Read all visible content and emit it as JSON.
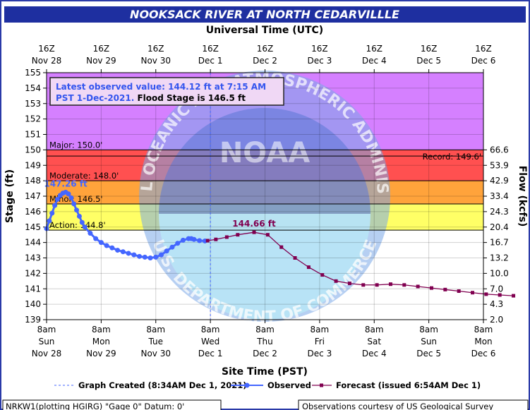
{
  "chart_data": {
    "type": "line",
    "title": "NOOKSACK RIVER AT NORTH CEDARVILLLE",
    "top_axis_title": "Universal Time (UTC)",
    "xlabel": "Site Time (PST)",
    "ylabel": "Stage (ft)",
    "y2label": "Flow (kcfs)",
    "ylim": [
      139,
      155
    ],
    "yticks": [
      139,
      140,
      141,
      142,
      143,
      144,
      145,
      146,
      147,
      148,
      149,
      150,
      151,
      152,
      153,
      154,
      155
    ],
    "top_ticks": [
      {
        "hour": "16Z",
        "date": "Nov 28"
      },
      {
        "hour": "16Z",
        "date": "Nov 29"
      },
      {
        "hour": "16Z",
        "date": "Nov 30"
      },
      {
        "hour": "16Z",
        "date": "Dec 1"
      },
      {
        "hour": "16Z",
        "date": "Dec 2"
      },
      {
        "hour": "16Z",
        "date": "Dec 3"
      },
      {
        "hour": "16Z",
        "date": "Dec 4"
      },
      {
        "hour": "16Z",
        "date": "Dec 5"
      },
      {
        "hour": "16Z",
        "date": "Dec 6"
      }
    ],
    "bottom_ticks": [
      {
        "time": "8am",
        "day": "Sun",
        "date": "Nov 28"
      },
      {
        "time": "8am",
        "day": "Mon",
        "date": "Nov 29"
      },
      {
        "time": "8am",
        "day": "Tue",
        "date": "Nov 30"
      },
      {
        "time": "8am",
        "day": "Wed",
        "date": "Dec 1"
      },
      {
        "time": "8am",
        "day": "Thu",
        "date": "Dec 2"
      },
      {
        "time": "8am",
        "day": "Fri",
        "date": "Dec 3"
      },
      {
        "time": "8am",
        "day": "Sat",
        "date": "Dec 4"
      },
      {
        "time": "8am",
        "day": "Sun",
        "date": "Dec 5"
      },
      {
        "time": "8am",
        "day": "Mon",
        "date": "Dec 6"
      }
    ],
    "flow_ticks": [
      {
        "stage": 150,
        "label": "66.6"
      },
      {
        "stage": 149,
        "label": "53.9"
      },
      {
        "stage": 148,
        "label": "42.9"
      },
      {
        "stage": 147,
        "label": "33.4"
      },
      {
        "stage": 146,
        "label": "24.3"
      },
      {
        "stage": 145,
        "label": "20.4"
      },
      {
        "stage": 144,
        "label": "16.7"
      },
      {
        "stage": 143,
        "label": "13.2"
      },
      {
        "stage": 142,
        "label": "10.0"
      },
      {
        "stage": 141,
        "label": "7.0"
      },
      {
        "stage": 140,
        "label": "4.3"
      },
      {
        "stage": 139,
        "label": "2.0"
      }
    ],
    "flood_categories": [
      {
        "label": "Major: 150.0'",
        "stage": 150.0,
        "top": 155,
        "color": "#d580ff"
      },
      {
        "label": "Moderate: 148.0'",
        "stage": 148.0,
        "top": 150.0,
        "color": "#ff5050"
      },
      {
        "label": "Minor: 146.5'",
        "stage": 146.5,
        "top": 148.0,
        "color": "#ffa33b"
      },
      {
        "label": "Action: 144.8'",
        "stage": 144.8,
        "top": 146.5,
        "color": "#ffff66"
      }
    ],
    "record": {
      "label": "Record: 149.6'",
      "stage": 149.6
    },
    "graph_created_day": 3.0,
    "series": [
      {
        "name": "Observed",
        "color": "#4466ff",
        "points": [
          [
            0.0,
            144.9
          ],
          [
            0.05,
            145.4
          ],
          [
            0.1,
            145.9
          ],
          [
            0.15,
            146.4
          ],
          [
            0.2,
            146.8
          ],
          [
            0.25,
            147.05
          ],
          [
            0.3,
            147.2
          ],
          [
            0.35,
            147.26
          ],
          [
            0.4,
            147.15
          ],
          [
            0.45,
            146.9
          ],
          [
            0.5,
            146.5
          ],
          [
            0.55,
            146.1
          ],
          [
            0.6,
            145.7
          ],
          [
            0.65,
            145.3
          ],
          [
            0.7,
            145.0
          ],
          [
            0.8,
            144.6
          ],
          [
            0.9,
            144.25
          ],
          [
            1.0,
            144.0
          ],
          [
            1.1,
            143.8
          ],
          [
            1.2,
            143.65
          ],
          [
            1.3,
            143.5
          ],
          [
            1.4,
            143.4
          ],
          [
            1.5,
            143.3
          ],
          [
            1.6,
            143.2
          ],
          [
            1.7,
            143.1
          ],
          [
            1.8,
            143.05
          ],
          [
            1.9,
            143.0
          ],
          [
            2.0,
            143.05
          ],
          [
            2.1,
            143.2
          ],
          [
            2.2,
            143.45
          ],
          [
            2.3,
            143.7
          ],
          [
            2.4,
            143.95
          ],
          [
            2.5,
            144.15
          ],
          [
            2.6,
            144.25
          ],
          [
            2.65,
            144.25
          ],
          [
            2.7,
            144.2
          ],
          [
            2.8,
            144.12
          ],
          [
            2.9,
            144.1
          ]
        ]
      },
      {
        "name": "Forecast",
        "color": "#800050",
        "points": [
          [
            2.95,
            144.12
          ],
          [
            3.1,
            144.2
          ],
          [
            3.3,
            144.35
          ],
          [
            3.5,
            144.5
          ],
          [
            3.8,
            144.66
          ],
          [
            4.05,
            144.5
          ],
          [
            4.3,
            143.7
          ],
          [
            4.55,
            143.0
          ],
          [
            4.8,
            142.4
          ],
          [
            5.05,
            141.9
          ],
          [
            5.3,
            141.5
          ],
          [
            5.55,
            141.35
          ],
          [
            5.8,
            141.25
          ],
          [
            6.05,
            141.25
          ],
          [
            6.3,
            141.3
          ],
          [
            6.55,
            141.25
          ],
          [
            6.8,
            141.15
          ],
          [
            7.05,
            141.05
          ],
          [
            7.3,
            140.95
          ],
          [
            7.55,
            140.85
          ],
          [
            7.8,
            140.75
          ],
          [
            8.05,
            140.65
          ],
          [
            8.3,
            140.6
          ],
          [
            8.55,
            140.55
          ]
        ]
      }
    ],
    "peak_labels": [
      {
        "text": "147.26 ft",
        "day": 0.35,
        "stage": 147.26,
        "color": "#4466ff"
      },
      {
        "text": "144.66 ft",
        "day": 3.8,
        "stage": 144.66,
        "color": "#800050"
      }
    ]
  },
  "info_box": {
    "line1": "Latest observed value: 144.12 ft at 7:15 AM",
    "line2_blue": "PST 1-Dec-2021.",
    "line2_black": " Flood Stage is 146.5 ft"
  },
  "legend": {
    "created": "Graph Created (8:34AM Dec 1, 2021)",
    "observed": "Observed",
    "forecast": "Forecast (issued 6:54AM Dec 1)"
  },
  "footer": {
    "left": "NRKW1(plotting HGIRG) \"Gage 0\" Datum: 0'",
    "right": "Observations courtesy of US Geological Survey"
  },
  "watermark": {
    "top_text": "NATIONAL OCEANIC AND ATMOSPHERIC ADMINISTRATION",
    "center_text": "NOAA",
    "bottom_text": "U.S. DEPARTMENT OF COMMERCE"
  },
  "colors": {
    "title_bg": "#1e2fa0",
    "frame": "#2a3aa8"
  }
}
